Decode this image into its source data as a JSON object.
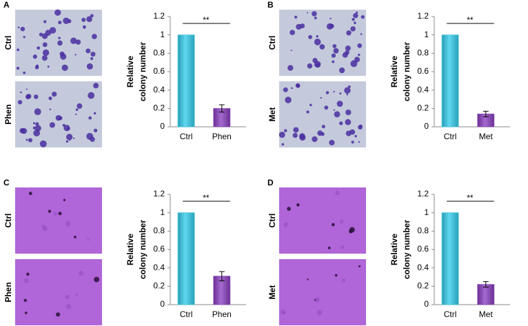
{
  "panels": [
    {
      "letter": "A",
      "image_labels": [
        "Ctrl",
        "Phen"
      ]
    },
    {
      "letter": "B",
      "image_labels": [
        "Ctrl",
        "Met"
      ]
    },
    {
      "letter": "C",
      "image_labels": [
        "Ctrl",
        "Phen"
      ]
    },
    {
      "letter": "D",
      "image_labels": [
        "Ctrl",
        "Met"
      ]
    }
  ],
  "chart_data": [
    {
      "type": "bar",
      "ylabel": [
        "Relative",
        "colony number"
      ],
      "categories": [
        "Ctrl",
        "Phen"
      ],
      "values": [
        1,
        0.2
      ],
      "errors": [
        0,
        0.04
      ],
      "colors": [
        "#3cc3dc",
        "#8a4bb5"
      ],
      "annotation": "**",
      "ylim": [
        0,
        1.2
      ],
      "yticks": [
        0,
        0.2,
        0.4,
        0.6,
        0.8,
        1,
        1.2
      ]
    },
    {
      "type": "bar",
      "ylabel": [
        "Relative",
        "colony number"
      ],
      "categories": [
        "Ctrl",
        "Met"
      ],
      "values": [
        1,
        0.14
      ],
      "errors": [
        0,
        0.03
      ],
      "colors": [
        "#3cc3dc",
        "#8a4bb5"
      ],
      "annotation": "**",
      "ylim": [
        0,
        1.2
      ],
      "yticks": [
        0,
        0.2,
        0.4,
        0.6,
        0.8,
        1,
        1.2
      ]
    },
    {
      "type": "bar",
      "ylabel": [
        "Relative",
        "colony number"
      ],
      "categories": [
        "Ctrl",
        "Phen"
      ],
      "values": [
        1,
        0.31
      ],
      "errors": [
        0,
        0.05
      ],
      "colors": [
        "#3cc3dc",
        "#8a4bb5"
      ],
      "annotation": "**",
      "ylim": [
        0,
        1.2
      ],
      "yticks": [
        0,
        0.2,
        0.4,
        0.6,
        0.8,
        1,
        1.2
      ]
    },
    {
      "type": "bar",
      "ylabel": [
        "Relative",
        "colony number"
      ],
      "categories": [
        "Ctrl",
        "Met"
      ],
      "values": [
        1,
        0.22
      ],
      "errors": [
        0,
        0.03
      ],
      "colors": [
        "#3cc3dc",
        "#8a4bb5"
      ],
      "annotation": "**",
      "ylim": [
        0,
        1.2
      ],
      "yticks": [
        0,
        0.2,
        0.4,
        0.6,
        0.8,
        1,
        1.2
      ]
    }
  ]
}
